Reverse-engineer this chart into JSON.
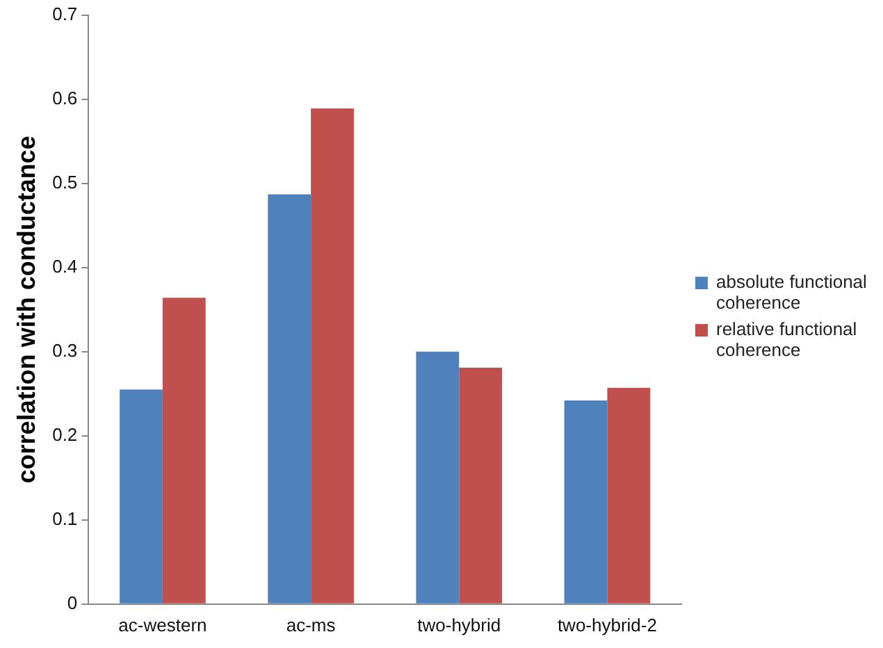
{
  "chart_data": {
    "type": "bar",
    "ylabel": "correlation with conductance",
    "categories": [
      "ac-western",
      "ac-ms",
      "two-hybrid",
      "two-hybrid-2"
    ],
    "series": [
      {
        "name": "absolute functional coherence",
        "color": "#4f81bd",
        "values": [
          0.255,
          0.487,
          0.3,
          0.242
        ]
      },
      {
        "name": "relative functional coherence",
        "color": "#c0504d",
        "values": [
          0.364,
          0.589,
          0.281,
          0.257
        ]
      }
    ],
    "ylim": [
      0,
      0.7
    ],
    "yticks": [
      0,
      0.1,
      0.2,
      0.3,
      0.4,
      0.5,
      0.6,
      0.7
    ],
    "grid": false,
    "legend": "right"
  }
}
